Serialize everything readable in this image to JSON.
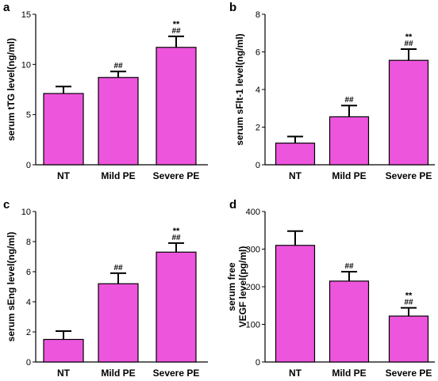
{
  "colors": {
    "bar_fill": "#ee55dd",
    "bar_stroke": "#000000",
    "axis": "#000000"
  },
  "chart_data": [
    {
      "type": "bar",
      "panel": "a",
      "ylabel": "serum tTG level(ng/ml)",
      "ylim": [
        0,
        15
      ],
      "yticks": [
        0,
        5,
        10,
        15
      ],
      "categories": [
        "NT",
        "Mild PE",
        "Severe PE"
      ],
      "values": [
        7.1,
        8.7,
        11.7
      ],
      "errors": [
        0.7,
        0.6,
        1.1
      ],
      "annotations": [
        [],
        [
          "##"
        ],
        [
          "**",
          "##"
        ]
      ]
    },
    {
      "type": "bar",
      "panel": "b",
      "ylabel": "serum sFlt-1 level(ng/ml)",
      "ylim": [
        0,
        8
      ],
      "yticks": [
        0,
        2,
        4,
        6,
        8
      ],
      "categories": [
        "NT",
        "Mild PE",
        "Severe PE"
      ],
      "values": [
        1.15,
        2.55,
        5.55
      ],
      "errors": [
        0.35,
        0.6,
        0.6
      ],
      "annotations": [
        [],
        [
          "##"
        ],
        [
          "**",
          "##"
        ]
      ]
    },
    {
      "type": "bar",
      "panel": "c",
      "ylabel": "serum sEng level(ng/ml)",
      "ylim": [
        0,
        10
      ],
      "yticks": [
        0,
        2,
        4,
        6,
        8,
        10
      ],
      "categories": [
        "NT",
        "Mild PE",
        "Severe PE"
      ],
      "values": [
        1.5,
        5.2,
        7.3
      ],
      "errors": [
        0.55,
        0.7,
        0.6
      ],
      "annotations": [
        [],
        [
          "##"
        ],
        [
          "**",
          "##"
        ]
      ]
    },
    {
      "type": "bar",
      "panel": "d",
      "ylabel": "serum free VEGF level(pg/ml)",
      "ylabel_lines": [
        "serum free",
        "VEGF level(pg/ml)"
      ],
      "ylim": [
        0,
        400
      ],
      "yticks": [
        0,
        100,
        200,
        300,
        400
      ],
      "categories": [
        "NT",
        "Mild PE",
        "Severe PE"
      ],
      "values": [
        310,
        215,
        122
      ],
      "errors": [
        38,
        25,
        22
      ],
      "annotations": [
        [],
        [
          "##"
        ],
        [
          "**",
          "##"
        ]
      ]
    }
  ]
}
